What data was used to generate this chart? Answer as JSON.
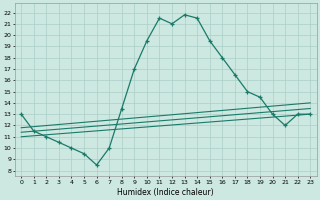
{
  "title": "",
  "xlabel": "Humidex (Indice chaleur)",
  "xlim": [
    -0.5,
    23.5
  ],
  "ylim": [
    7.5,
    22.8
  ],
  "yticks": [
    8,
    9,
    10,
    11,
    12,
    13,
    14,
    15,
    16,
    17,
    18,
    19,
    20,
    21,
    22
  ],
  "xticks": [
    0,
    1,
    2,
    3,
    4,
    5,
    6,
    7,
    8,
    9,
    10,
    11,
    12,
    13,
    14,
    15,
    16,
    17,
    18,
    19,
    20,
    21,
    22,
    23
  ],
  "bg_color": "#cce8e0",
  "grid_color": "#aacfc8",
  "line_color": "#1a7a6a",
  "line1_x": [
    0,
    1,
    2,
    3,
    4,
    5,
    6,
    7,
    8,
    9,
    10,
    11,
    12,
    13,
    14,
    15,
    16,
    17,
    18,
    19,
    20,
    21,
    22,
    23
  ],
  "line1_y": [
    13,
    11.5,
    11,
    10.5,
    10,
    9.5,
    8.5,
    10,
    13.5,
    17,
    19.5,
    21.5,
    21,
    21.8,
    21.5,
    19.5,
    18,
    16.5,
    15,
    14.5,
    13,
    12,
    13,
    13
  ],
  "line2_x": [
    0,
    23
  ],
  "line2_y": [
    11.8,
    14.0
  ],
  "line3_x": [
    0,
    23
  ],
  "line3_y": [
    11.4,
    13.5
  ],
  "line4_x": [
    0,
    23
  ],
  "line4_y": [
    11.0,
    13.0
  ]
}
